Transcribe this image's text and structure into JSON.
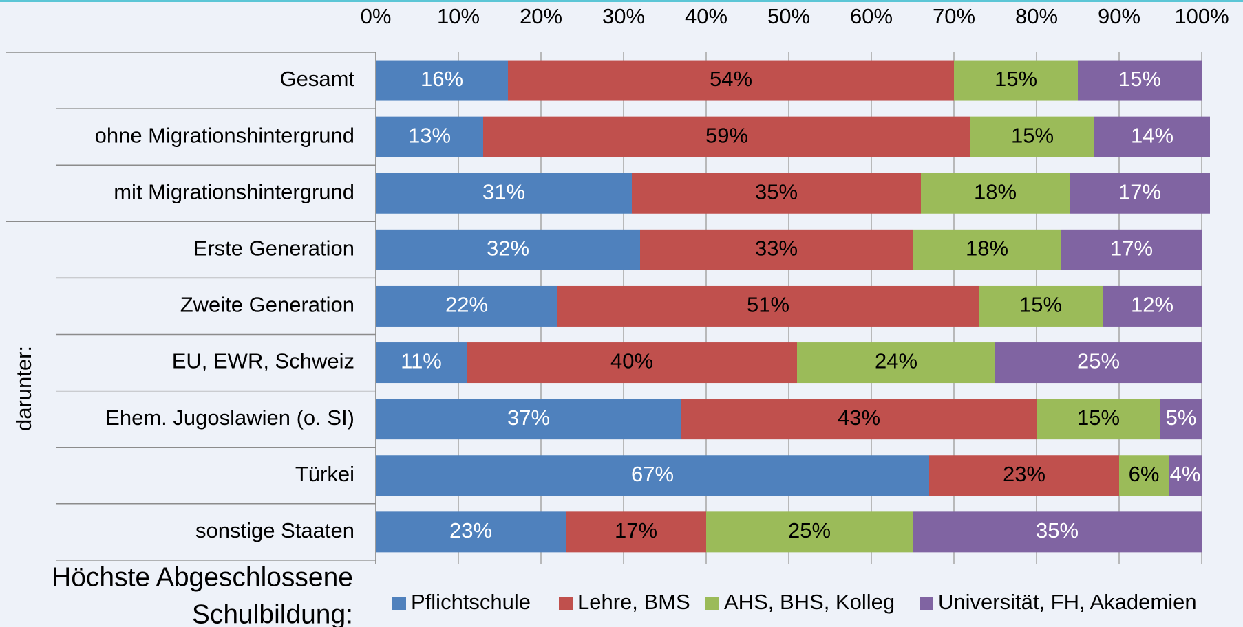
{
  "chart_data": {
    "type": "stacked_barh",
    "categories": [
      "Gesamt",
      "ohne Migrationshintergrund",
      "mit Migrationshintergrund",
      "Erste Generation",
      "Zweite Generation",
      "EU, EWR, Schweiz",
      "Ehem. Jugoslawien (o. SI)",
      "Türkei",
      "sonstige Staaten"
    ],
    "series": [
      {
        "name": "Pflichtschule",
        "color": "#4f81bd",
        "label_color": "#ffffff",
        "values": [
          16,
          13,
          31,
          32,
          22,
          11,
          37,
          67,
          23
        ],
        "value_labels": [
          "16%",
          "13%",
          "31%",
          "32%",
          "22%",
          "11%",
          "37%",
          "67%",
          "23%"
        ]
      },
      {
        "name": "Lehre, BMS",
        "color": "#c0504d",
        "label_color": "#000000",
        "values": [
          54,
          59,
          35,
          33,
          51,
          40,
          43,
          23,
          17
        ],
        "value_labels": [
          "54%",
          "59%",
          "35%",
          "33%",
          "51%",
          "40%",
          "43%",
          "23%",
          "17%"
        ]
      },
      {
        "name": "AHS, BHS, Kolleg",
        "color": "#9bbb59",
        "label_color": "#000000",
        "values": [
          15,
          15,
          18,
          18,
          15,
          24,
          15,
          6,
          25
        ],
        "value_labels": [
          "15%",
          "15%",
          "18%",
          "18%",
          "15%",
          "24%",
          "15%",
          "6%",
          "25%"
        ]
      },
      {
        "name": "Universität, FH, Akademien",
        "color": "#8064a2",
        "label_color": "#ffffff",
        "values": [
          15,
          14,
          17,
          17,
          12,
          25,
          5,
          4,
          35
        ],
        "value_labels": [
          "15%",
          "14%",
          "17%",
          "17%",
          "12%",
          "25%",
          "5%",
          "4%",
          "35%"
        ]
      }
    ],
    "xlim": [
      0,
      100
    ],
    "xticks": [
      {
        "value": 0,
        "label": "0%"
      },
      {
        "value": 10,
        "label": "10%"
      },
      {
        "value": 20,
        "label": "20%"
      },
      {
        "value": 30,
        "label": "30%"
      },
      {
        "value": 40,
        "label": "40%"
      },
      {
        "value": 50,
        "label": "50%"
      },
      {
        "value": 60,
        "label": "60%"
      },
      {
        "value": 70,
        "label": "70%"
      },
      {
        "value": 80,
        "label": "80%"
      },
      {
        "value": 90,
        "label": "90%"
      },
      {
        "value": 100,
        "label": "100%"
      }
    ],
    "grid": true,
    "group_label": "darunter:",
    "legend_title": [
      "Höchste Abgeschlossene",
      "Schulbildung:"
    ],
    "legend": "bottom"
  }
}
